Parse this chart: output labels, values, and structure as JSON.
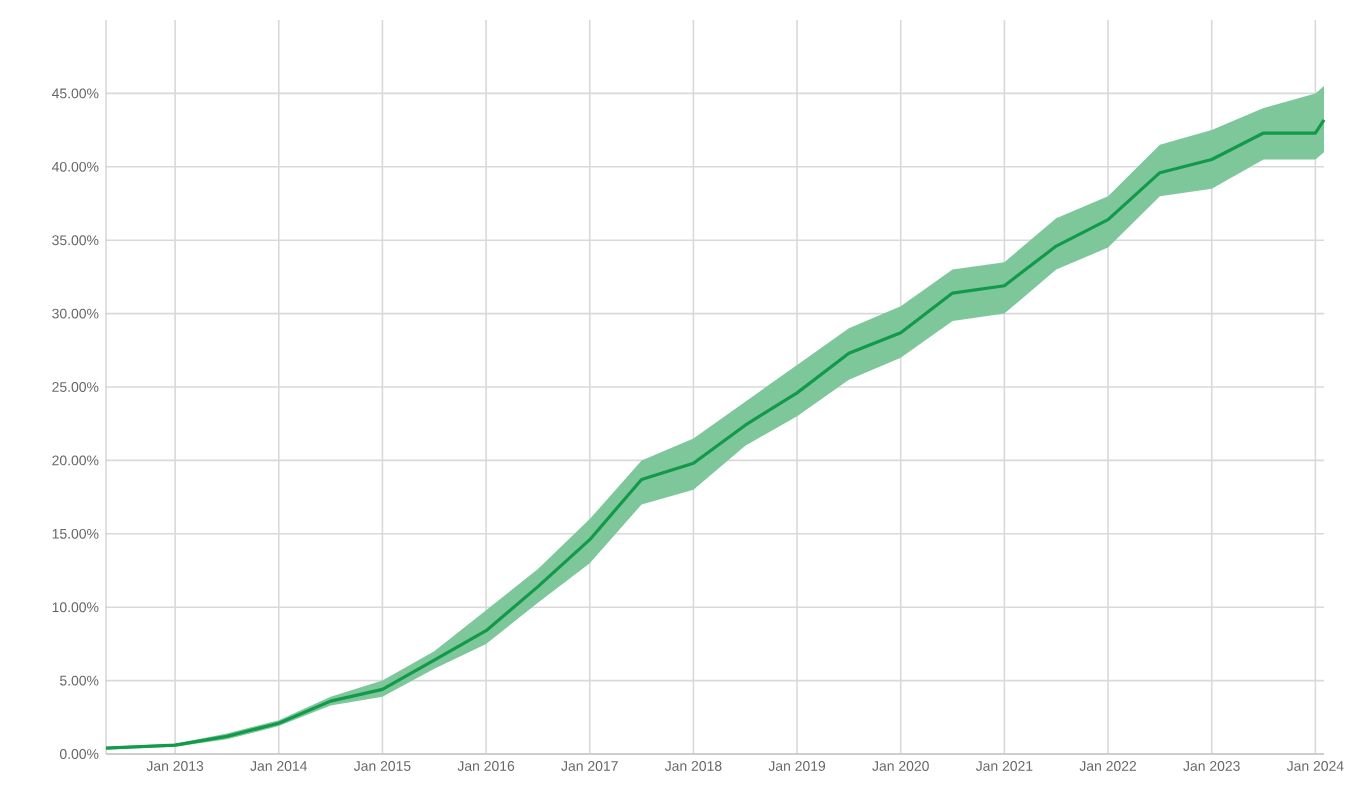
{
  "chart_data": {
    "type": "line",
    "x": [
      "2012-05",
      "2013-01",
      "2013-07",
      "2014-01",
      "2014-07",
      "2015-01",
      "2015-07",
      "2016-01",
      "2016-07",
      "2017-01",
      "2017-07",
      "2018-01",
      "2018-07",
      "2019-01",
      "2019-07",
      "2020-01",
      "2020-07",
      "2021-01",
      "2021-07",
      "2022-01",
      "2022-07",
      "2023-01",
      "2023-07",
      "2024-01",
      "2024-02"
    ],
    "series": [
      {
        "color": "#13994a",
        "values": [
          0.4,
          0.6,
          1.2,
          2.1,
          3.6,
          4.4,
          6.4,
          8.4,
          11.4,
          14.6,
          18.7,
          19.8,
          22.4,
          24.6,
          27.3,
          28.7,
          31.4,
          31.9,
          34.6,
          36.4,
          39.6,
          40.5,
          42.3,
          42.3,
          43.2
        ],
        "lower": [
          0.3,
          0.5,
          1.0,
          1.9,
          3.3,
          3.9,
          5.8,
          7.5,
          10.3,
          13.0,
          17.0,
          18.0,
          21.0,
          23.0,
          25.5,
          27.0,
          29.5,
          30.0,
          33.0,
          34.5,
          38.0,
          38.5,
          40.5,
          40.5,
          41.0
        ],
        "upper": [
          0.5,
          0.7,
          1.4,
          2.3,
          3.9,
          5.0,
          7.0,
          9.8,
          12.6,
          16.0,
          20.0,
          21.5,
          24.0,
          26.5,
          29.0,
          30.5,
          33.0,
          33.5,
          36.5,
          38.0,
          41.5,
          42.5,
          44.0,
          45.0,
          45.5
        ]
      }
    ],
    "xlim": [
      "2012-05",
      "2024-02"
    ],
    "xticks": [
      {
        "value": "2013-01",
        "label": "Jan 2013"
      },
      {
        "value": "2014-01",
        "label": "Jan 2014"
      },
      {
        "value": "2015-01",
        "label": "Jan 2015"
      },
      {
        "value": "2016-01",
        "label": "Jan 2016"
      },
      {
        "value": "2017-01",
        "label": "Jan 2017"
      },
      {
        "value": "2018-01",
        "label": "Jan 2018"
      },
      {
        "value": "2019-01",
        "label": "Jan 2019"
      },
      {
        "value": "2020-01",
        "label": "Jan 2020"
      },
      {
        "value": "2021-01",
        "label": "Jan 2021"
      },
      {
        "value": "2022-01",
        "label": "Jan 2022"
      },
      {
        "value": "2023-01",
        "label": "Jan 2023"
      },
      {
        "value": "2024-01",
        "label": "Jan 2024"
      }
    ],
    "ylim": [
      0,
      50
    ],
    "yticks": [
      {
        "value": 0,
        "label": "0.00%"
      },
      {
        "value": 5,
        "label": "5.00%"
      },
      {
        "value": 10,
        "label": "10.00%"
      },
      {
        "value": 15,
        "label": "15.00%"
      },
      {
        "value": 20,
        "label": "20.00%"
      },
      {
        "value": 25,
        "label": "25.00%"
      },
      {
        "value": 30,
        "label": "30.00%"
      },
      {
        "value": 35,
        "label": "35.00%"
      },
      {
        "value": 40,
        "label": "40.00%"
      },
      {
        "value": 45,
        "label": "45.00%"
      }
    ],
    "grid": true
  }
}
